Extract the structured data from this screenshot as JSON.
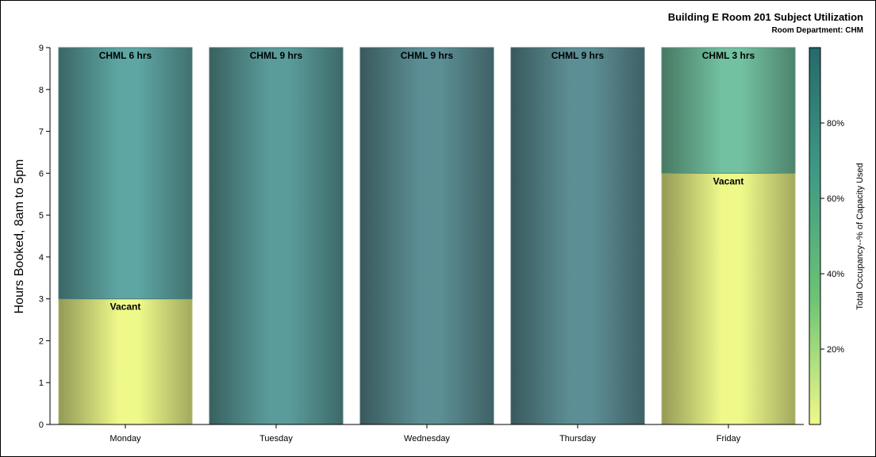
{
  "chart_data": {
    "type": "bar",
    "stacked": true,
    "title": "Building E Room 201 Subject Utilization",
    "subtitle": "Room Department: CHM",
    "ylabel": "Hours Booked, 8am to 5pm",
    "ylim": [
      0,
      9
    ],
    "yticks": [
      0,
      1,
      2,
      3,
      4,
      5,
      6,
      7,
      8,
      9
    ],
    "categories": [
      "Monday",
      "Tuesday",
      "Wednesday",
      "Thursday",
      "Friday"
    ],
    "bars": [
      {
        "category": "Monday",
        "segments": [
          {
            "label": "Vacant",
            "hours": 3,
            "color": "#eef98a"
          },
          {
            "label": "CHML 6 hrs",
            "hours": 6,
            "color": "#5ea6a3"
          }
        ]
      },
      {
        "category": "Tuesday",
        "segments": [
          {
            "label": "CHML 9 hrs",
            "hours": 9,
            "color": "#5a9c9a"
          }
        ]
      },
      {
        "category": "Wednesday",
        "segments": [
          {
            "label": "CHML 9 hrs",
            "hours": 9,
            "color": "#5c8f95"
          }
        ]
      },
      {
        "category": "Thursday",
        "segments": [
          {
            "label": "CHML 9 hrs",
            "hours": 9,
            "color": "#5c8f95"
          }
        ]
      },
      {
        "category": "Friday",
        "segments": [
          {
            "label": "Vacant",
            "hours": 6,
            "color": "#eef98a"
          },
          {
            "label": "CHML 3 hrs",
            "hours": 3,
            "color": "#72c1a0"
          }
        ]
      }
    ],
    "colorbar": {
      "label": "Total Occupancy--% of Capacity Used",
      "ticks": [
        "20%",
        "40%",
        "60%",
        "80%"
      ],
      "tick_values": [
        20,
        40,
        60,
        80
      ],
      "range": [
        0,
        100
      ],
      "colors": [
        "#f0f98a",
        "#6cc475",
        "#3f9a84",
        "#256a6b"
      ]
    }
  }
}
